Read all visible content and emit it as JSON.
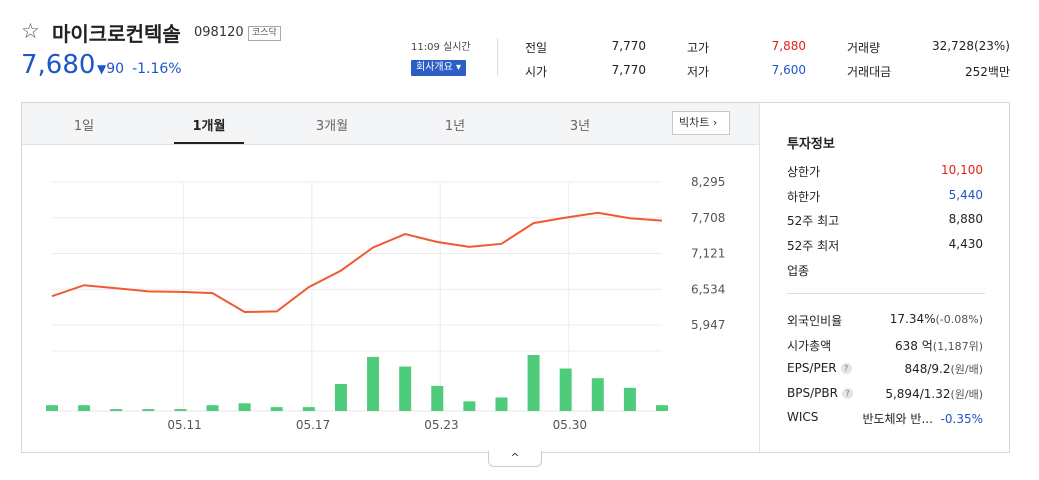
{
  "stock": {
    "name": "마이크로컨텍솔",
    "code": "098120",
    "market": "코스닥",
    "price": "7,680",
    "change_arrow": "▼",
    "change": "90",
    "change_pct": "-1.16%",
    "time": "11:09 실시간",
    "company_button": "회사개요 ▾"
  },
  "quotes": [
    {
      "label": "전일",
      "value": "7,770",
      "color": "#222222"
    },
    {
      "label": "시가",
      "value": "7,770",
      "color": "#222222"
    },
    {
      "label": "고가",
      "value": "7,880",
      "color": "#e0211b"
    },
    {
      "label": "저가",
      "value": "7,600",
      "color": "#1d56c9"
    },
    {
      "label": "거래량",
      "value": "32,728(23%)",
      "color": "#222222"
    },
    {
      "label": "거래대금",
      "value": "252백만",
      "color": "#222222"
    }
  ],
  "tabs": [
    "1일",
    "1개월",
    "3개월",
    "1년",
    "3년"
  ],
  "active_tab": "1개월",
  "big_chart_label": "빅차트",
  "chart_data": {
    "type": "line",
    "series": [
      {
        "values": [
          6420,
          6600,
          6550,
          6500,
          6490,
          6470,
          6160,
          6170,
          6570,
          6840,
          7220,
          7440,
          7310,
          7230,
          7280,
          7620,
          7710,
          7790,
          7700,
          7660
        ]
      },
      {
        "type": "bar",
        "values": [
          3,
          3,
          1,
          1,
          1,
          3,
          4,
          2,
          2,
          14,
          28,
          23,
          13,
          5,
          7,
          29,
          22,
          17,
          12,
          3
        ]
      }
    ],
    "x_ticks": [
      "05.11",
      "05.17",
      "05.23",
      "05.30"
    ],
    "y_ticks": [
      "8,295",
      "7,708",
      "7,121",
      "6,534",
      "5,947"
    ],
    "ylim": [
      5947,
      8295
    ],
    "grid": true,
    "line_color": "#f05a30",
    "bar_color": "#4ecc7b"
  },
  "info": {
    "title": "투자정보",
    "rows": [
      {
        "label": "상한가",
        "value": "10,100",
        "color": "#e0211b"
      },
      {
        "label": "하한가",
        "value": "5,440",
        "color": "#1d56c9"
      },
      {
        "label": "52주 최고",
        "value": "8,880",
        "color": "#222222"
      },
      {
        "label": "52주 최저",
        "value": "4,430",
        "color": "#222222"
      },
      {
        "label": "업종",
        "value": "",
        "color": "#222222"
      }
    ],
    "rows2": [
      {
        "label": "외국인비율",
        "value": "17.34%",
        "sub": "(-0.08%)",
        "help": false
      },
      {
        "label": "시가총액",
        "value": "638 억",
        "sub": "(1,187위)",
        "help": false
      },
      {
        "label": "EPS/PER",
        "value": "848/9.2",
        "sub": "(원/배)",
        "help": true
      },
      {
        "label": "BPS/PBR",
        "value": "5,894/1.32",
        "sub": "(원/배)",
        "help": true
      }
    ],
    "wics_label": "WICS",
    "wics_value": "반도체와 반...",
    "wics_change": "-0.35%"
  },
  "collapse_icon": "^"
}
